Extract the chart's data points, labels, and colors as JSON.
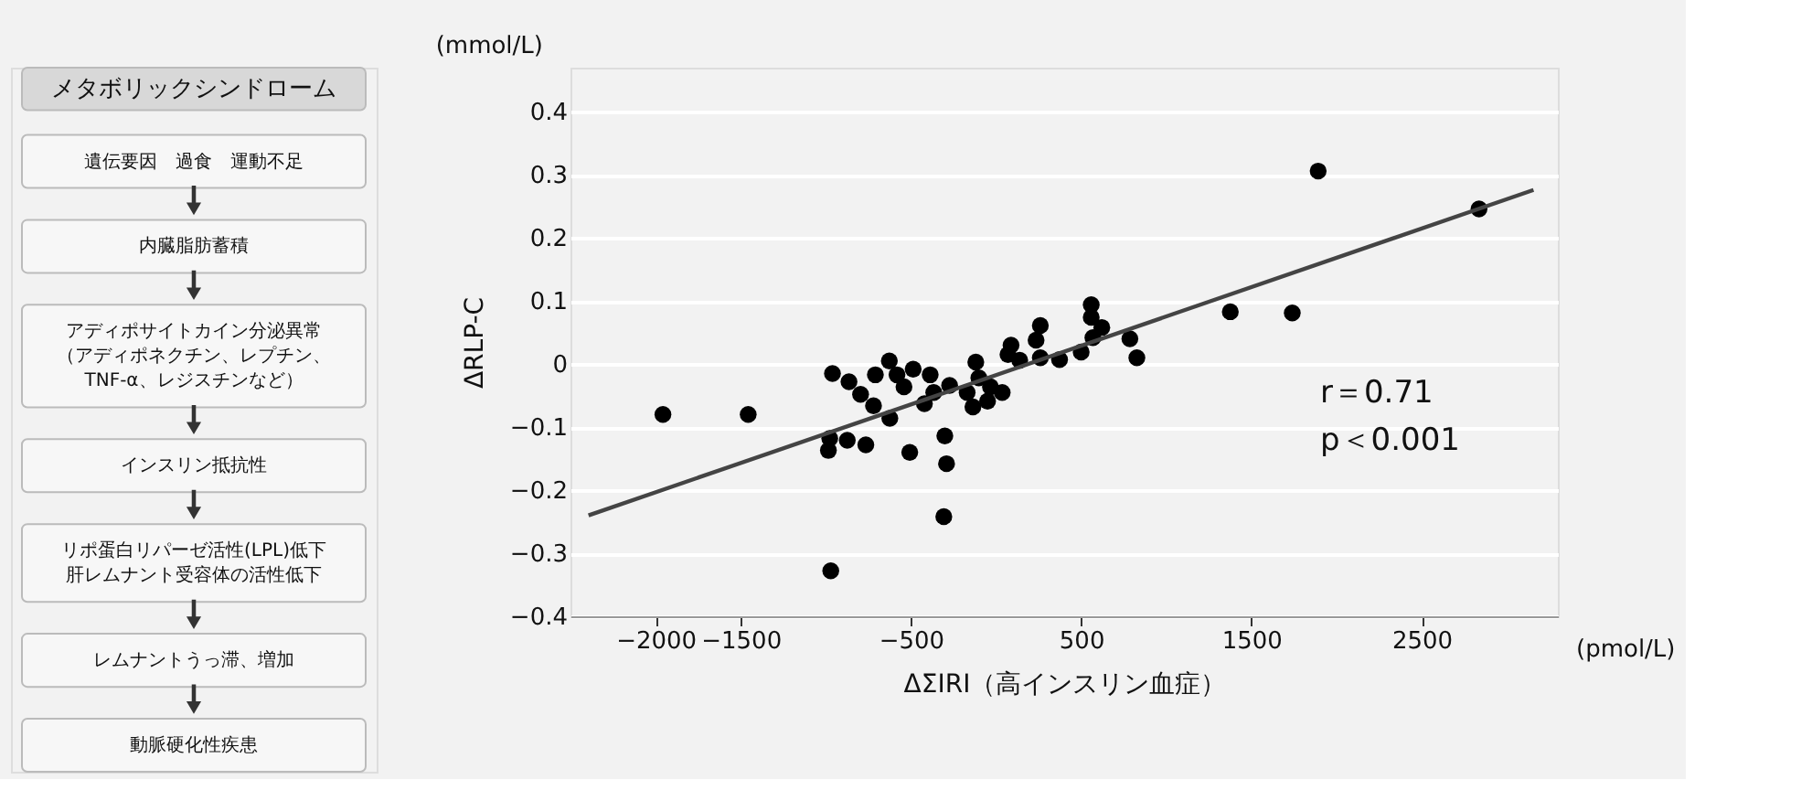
{
  "chart_data": [
    {
      "type": "other",
      "title": "メタボリックシンドローム",
      "annotations": [
        "遺伝要因　過食　運動不足",
        "内臓脂肪蓄積",
        "アディポサイトカイン分泌異常（アディポネクチン、レプチン、TNF-α、レジスチンなど）",
        "インスリン抵抗性",
        "リポ蛋白リパーゼ活性(LPL)低下肝レムナント受容体の活性低下",
        "レムナントうっ滞、増加",
        "動脈硬化性疾患"
      ]
    },
    {
      "type": "scatter",
      "xlabel": "ΔΣIRI（高インスリン血症）",
      "ylabel": "ΔRLP-C",
      "xlim": [
        -2500,
        3300
      ],
      "xticks": [
        -2000,
        -1500,
        -500,
        500,
        1500,
        2500
      ],
      "ylim": [
        -0.4,
        0.47
      ],
      "yticks": [
        -0.4,
        -0.3,
        -0.2,
        -0.1,
        0,
        0.1,
        0.2,
        0.3,
        0.4
      ],
      "grid": "y",
      "annotations": [
        "(mmol/L)",
        "(pmol/L)",
        "r＝0.71",
        "p＜0.001"
      ],
      "series": [
        {
          "type": "scatter",
          "marker": "circle",
          "color": "#000000",
          "x": [
            -1957,
            -1456,
            -961,
            -864,
            -796,
            -720,
            -709,
            -627,
            -582,
            -541,
            -487,
            -624,
            -977,
            -985,
            -874,
            -765,
            -507,
            -387,
            -421,
            -366,
            -301,
            -291,
            -307,
            -971,
            -273,
            -119,
            -170,
            -136,
            -50,
            -101,
            -33,
            36,
            88,
            70,
            139,
            260,
            235,
            260,
            373,
            500,
            559,
            559,
            569,
            621,
            786,
            827,
            1892,
            2837,
            1376,
            1740
          ],
          "values": [
            -0.08,
            -0.08,
            -0.015,
            -0.028,
            -0.048,
            -0.066,
            -0.017,
            0.005,
            -0.017,
            -0.036,
            -0.008,
            -0.086,
            -0.118,
            -0.137,
            -0.121,
            -0.128,
            -0.14,
            -0.017,
            -0.063,
            -0.045,
            -0.114,
            -0.158,
            -0.242,
            -0.328,
            -0.034,
            0.003,
            -0.045,
            -0.068,
            -0.059,
            -0.022,
            -0.036,
            -0.045,
            0.03,
            0.015,
            0.006,
            0.061,
            0.038,
            0.01,
            0.007,
            0.019,
            0.094,
            0.074,
            0.042,
            0.058,
            0.04,
            0.01,
            0.306,
            0.246,
            0.083,
            0.081
          ]
        },
        {
          "type": "line",
          "color": "#444444",
          "x": [
            -2394,
            3157
          ],
          "values": [
            -0.24,
            0.276
          ]
        }
      ]
    }
  ]
}
